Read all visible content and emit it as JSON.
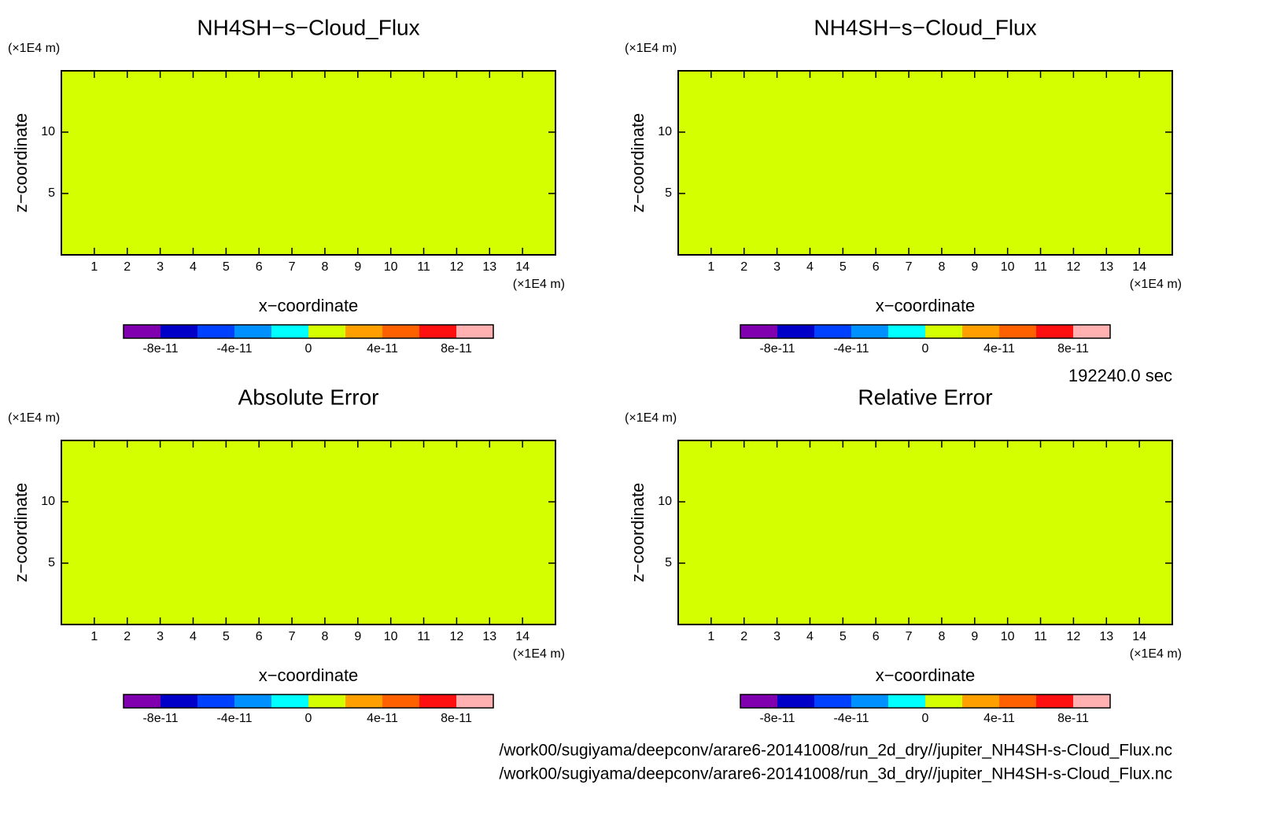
{
  "chart_data": [
    {
      "type": "heatmap",
      "title": "NH4SH−s−Cloud_Flux",
      "x_label": "x−coordinate",
      "y_label": "z−coordinate",
      "x_unit": "(×1E4 m)",
      "y_unit": "(×1E4 m)",
      "xlim": [
        0,
        15
      ],
      "ylim": [
        0,
        15
      ],
      "xticks": [
        1,
        2,
        3,
        4,
        5,
        6,
        7,
        8,
        9,
        10,
        11,
        12,
        13,
        14
      ],
      "yticks": [
        5,
        10
      ],
      "values": [
        0
      ],
      "colorbar": {
        "levels": [
          -1e-10,
          -8e-11,
          -6e-11,
          -4e-11,
          -2e-11,
          0,
          2e-11,
          4e-11,
          6e-11,
          8e-11,
          1e-10
        ],
        "colors": [
          "#8000b0",
          "#0000c8",
          "#0040ff",
          "#0090ff",
          "#00ffff",
          "#d4ff00",
          "#ffa000",
          "#ff6000",
          "#ff1010",
          "#ffb0b0"
        ],
        "ticks": [
          -8e-11,
          -4e-11,
          0,
          4e-11,
          8e-11
        ]
      }
    },
    {
      "type": "heatmap",
      "title": "NH4SH−s−Cloud_Flux",
      "x_label": "x−coordinate",
      "y_label": "z−coordinate",
      "x_unit": "(×1E4 m)",
      "y_unit": "(×1E4 m)",
      "xlim": [
        0,
        15
      ],
      "ylim": [
        0,
        15
      ],
      "xticks": [
        1,
        2,
        3,
        4,
        5,
        6,
        7,
        8,
        9,
        10,
        11,
        12,
        13,
        14
      ],
      "yticks": [
        5,
        10
      ],
      "values": [
        0
      ],
      "colorbar": {
        "levels": [
          -1e-10,
          -8e-11,
          -6e-11,
          -4e-11,
          -2e-11,
          0,
          2e-11,
          4e-11,
          6e-11,
          8e-11,
          1e-10
        ],
        "colors": [
          "#8000b0",
          "#0000c8",
          "#0040ff",
          "#0090ff",
          "#00ffff",
          "#d4ff00",
          "#ffa000",
          "#ff6000",
          "#ff1010",
          "#ffb0b0"
        ],
        "ticks": [
          -8e-11,
          -4e-11,
          0,
          4e-11,
          8e-11
        ]
      }
    },
    {
      "type": "heatmap",
      "title": "Absolute Error",
      "x_label": "x−coordinate",
      "y_label": "z−coordinate",
      "x_unit": "(×1E4 m)",
      "y_unit": "(×1E4 m)",
      "xlim": [
        0,
        15
      ],
      "ylim": [
        0,
        15
      ],
      "xticks": [
        1,
        2,
        3,
        4,
        5,
        6,
        7,
        8,
        9,
        10,
        11,
        12,
        13,
        14
      ],
      "yticks": [
        5,
        10
      ],
      "values": [
        0
      ],
      "colorbar": {
        "levels": [
          -1e-10,
          -8e-11,
          -6e-11,
          -4e-11,
          -2e-11,
          0,
          2e-11,
          4e-11,
          6e-11,
          8e-11,
          1e-10
        ],
        "colors": [
          "#8000b0",
          "#0000c8",
          "#0040ff",
          "#0090ff",
          "#00ffff",
          "#d4ff00",
          "#ffa000",
          "#ff6000",
          "#ff1010",
          "#ffb0b0"
        ],
        "ticks": [
          -8e-11,
          -4e-11,
          0,
          4e-11,
          8e-11
        ]
      }
    },
    {
      "type": "heatmap",
      "title": "Relative Error",
      "x_label": "x−coordinate",
      "y_label": "z−coordinate",
      "x_unit": "(×1E4 m)",
      "y_unit": "(×1E4 m)",
      "xlim": [
        0,
        15
      ],
      "ylim": [
        0,
        15
      ],
      "xticks": [
        1,
        2,
        3,
        4,
        5,
        6,
        7,
        8,
        9,
        10,
        11,
        12,
        13,
        14
      ],
      "yticks": [
        5,
        10
      ],
      "values": [
        0
      ],
      "colorbar": {
        "levels": [
          -1e-10,
          -8e-11,
          -6e-11,
          -4e-11,
          -2e-11,
          0,
          2e-11,
          4e-11,
          6e-11,
          8e-11,
          1e-10
        ],
        "colors": [
          "#8000b0",
          "#0000c8",
          "#0040ff",
          "#0090ff",
          "#00ffff",
          "#d4ff00",
          "#ffa000",
          "#ff6000",
          "#ff1010",
          "#ffb0b0"
        ],
        "ticks": [
          -8e-11,
          -4e-11,
          0,
          4e-11,
          8e-11
        ]
      }
    }
  ],
  "time_label": "192240.0 sec",
  "files": [
    "/work00/sugiyama/deepconv/arare6-20141008/run_2d_dry//jupiter_NH4SH-s-Cloud_Flux.nc",
    "/work00/sugiyama/deepconv/arare6-20141008/run_3d_dry//jupiter_NH4SH-s-Cloud_Flux.nc"
  ]
}
